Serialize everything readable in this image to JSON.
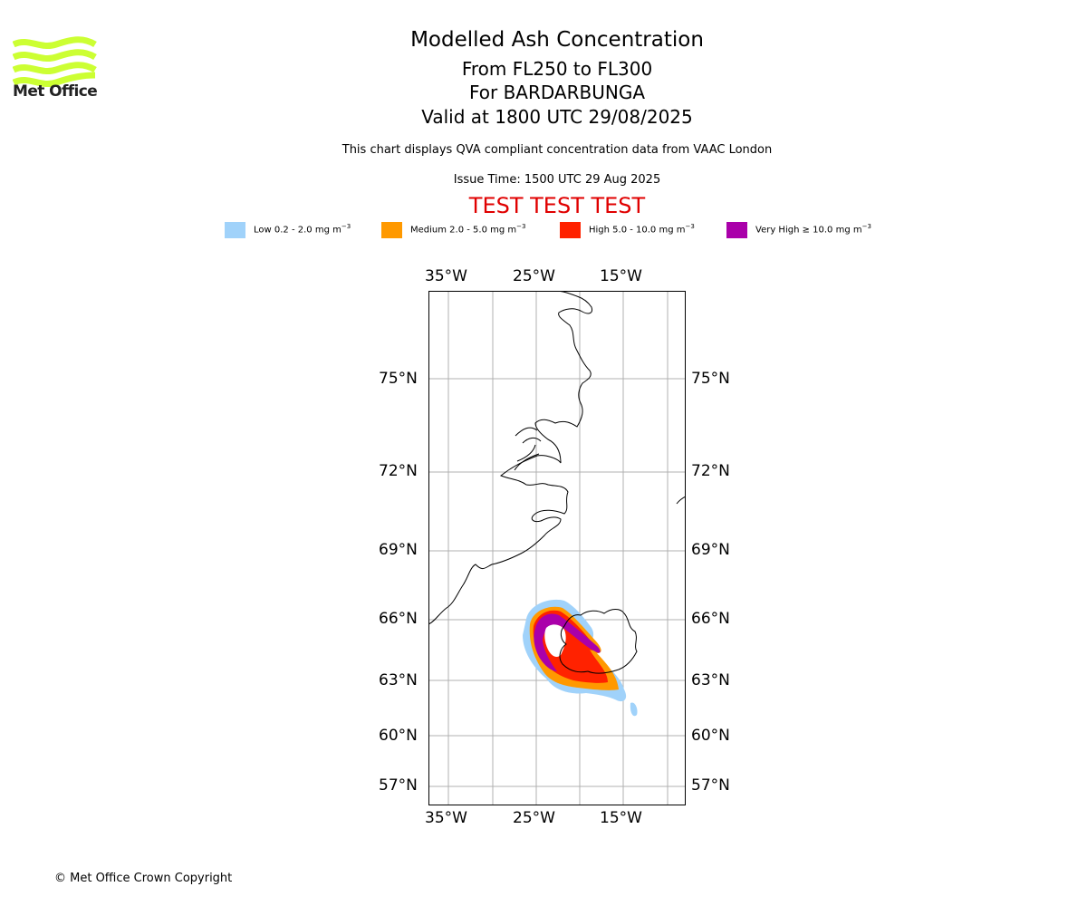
{
  "logo": {
    "icon": "met-office-wave-logo",
    "text": "Met Office",
    "color": "#ccff33"
  },
  "header": {
    "title": "Modelled Ash Concentration",
    "levels": "From FL250 to FL300",
    "volcano": "For BARDARBUNGA",
    "valid": "Valid at 1800 UTC 29/08/2025",
    "description": "This chart displays QVA compliant concentration data from VAAC London",
    "issue_time": "Issue Time: 1500 UTC 29 Aug 2025",
    "test_banner": "TEST TEST TEST"
  },
  "legend": [
    {
      "label": "Low 0.2 - 2.0 mg m",
      "exp": "−3",
      "color": "#a0d2fa"
    },
    {
      "label": "Medium 2.0 - 5.0 mg m",
      "exp": "−3",
      "color": "#ff9900"
    },
    {
      "label": "High 5.0 - 10.0 mg m",
      "exp": "−3",
      "color": "#ff2200"
    },
    {
      "label": "Very High  ≥  10.0 mg m",
      "exp": "−3",
      "color": "#aa00aa"
    }
  ],
  "map": {
    "lon_ticks": [
      "35°W",
      "25°W",
      "15°W"
    ],
    "lat_ticks": [
      "75°N",
      "72°N",
      "69°N",
      "66°N",
      "63°N",
      "60°N",
      "57°N"
    ],
    "grid": true
  },
  "footer": {
    "copyright": "© Met Office Crown Copyright"
  }
}
